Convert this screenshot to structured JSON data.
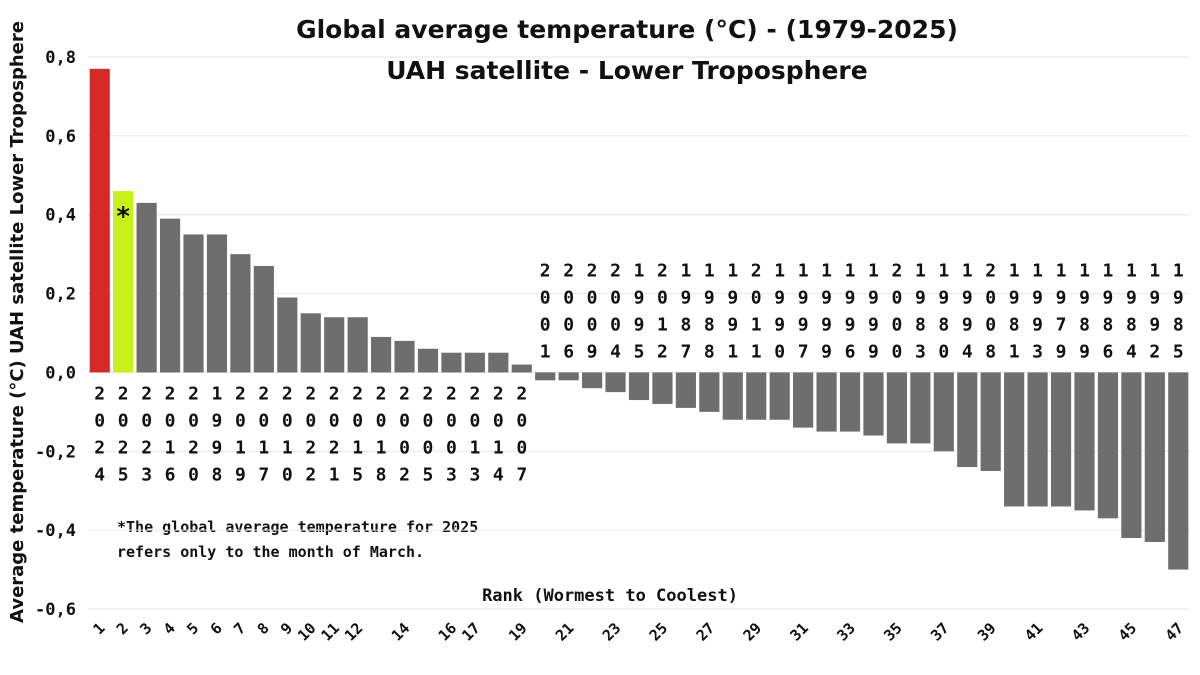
{
  "chart_data": {
    "type": "bar",
    "title": "Global average temperature (°C) - (1979-2025)",
    "subtitle": "UAH satellite - Lower Troposphere",
    "xlabel": "Rank (Wormest to Coolest)",
    "ylabel": "Average temperature (°C) UAH satellite Lower Troposphere",
    "ylim": [
      -0.6,
      0.8
    ],
    "yticks": [
      0.8,
      0.6,
      0.4,
      0.2,
      0.0,
      -0.2,
      -0.4,
      -0.6
    ],
    "ytick_labels": [
      "0,8",
      "0,6",
      "0,4",
      "0,2",
      "0,0",
      "-0,2",
      "-0,4",
      "-0,6"
    ],
    "grid": true,
    "categories": [
      "1",
      "2",
      "3",
      "4",
      "5",
      "6",
      "7",
      "8",
      "9",
      "10",
      "11",
      "12",
      "13",
      "14",
      "15",
      "16",
      "17",
      "18",
      "19",
      "20",
      "21",
      "22",
      "23",
      "24",
      "25",
      "26",
      "27",
      "28",
      "29",
      "30",
      "31",
      "32",
      "33",
      "34",
      "35",
      "36",
      "37",
      "38",
      "39",
      "40",
      "41",
      "42",
      "43",
      "44",
      "45",
      "46",
      "47"
    ],
    "rank_tick_labels": [
      "1",
      "2",
      "3",
      "4",
      "5",
      "6",
      "7",
      "8",
      "9",
      "10",
      "11",
      "12",
      "",
      "14",
      "",
      "16",
      "17",
      "",
      "19",
      "",
      "21",
      "",
      "23",
      "",
      "25",
      "",
      "27",
      "",
      "29",
      "",
      "31",
      "",
      "33",
      "",
      "35",
      "",
      "37",
      "",
      "39",
      "",
      "41",
      "",
      "43",
      "",
      "45",
      "",
      "47"
    ],
    "years": [
      "2024",
      "2025",
      "2023",
      "2016",
      "2020",
      "1998",
      "2019",
      "2017",
      "2010",
      "2022",
      "2021",
      "2015",
      "2018",
      "2002",
      "2005",
      "2003",
      "2013",
      "2014",
      "2007",
      "2001",
      "2006",
      "2009",
      "2004",
      "1995",
      "2012",
      "1987",
      "1988",
      "1991",
      "2011",
      "1990",
      "1997",
      "1999",
      "1996",
      "1999",
      "2000",
      "1983",
      "1980",
      "1994",
      "2008",
      "1981",
      "1993",
      "1979",
      "1989",
      "1986",
      "1984",
      "1992",
      "1985"
    ],
    "values": [
      0.77,
      0.46,
      0.43,
      0.39,
      0.35,
      0.35,
      0.3,
      0.27,
      0.19,
      0.15,
      0.14,
      0.14,
      0.09,
      0.08,
      0.06,
      0.05,
      0.05,
      0.05,
      0.02,
      -0.02,
      -0.02,
      -0.04,
      -0.05,
      -0.07,
      -0.08,
      -0.09,
      -0.1,
      -0.12,
      -0.12,
      -0.12,
      -0.14,
      -0.15,
      -0.15,
      -0.16,
      -0.18,
      -0.18,
      -0.2,
      -0.24,
      -0.25,
      -0.34,
      -0.34,
      -0.34,
      -0.35,
      -0.37,
      -0.42,
      -0.43,
      -0.5
    ],
    "colors": {
      "rank1": "#d42a2a",
      "rank2": "#c8f01a",
      "default": "#6e6e6e"
    },
    "star_label": "*",
    "annotation": [
      "*The global average temperature for 2025",
      "refers only to the month of March."
    ]
  }
}
